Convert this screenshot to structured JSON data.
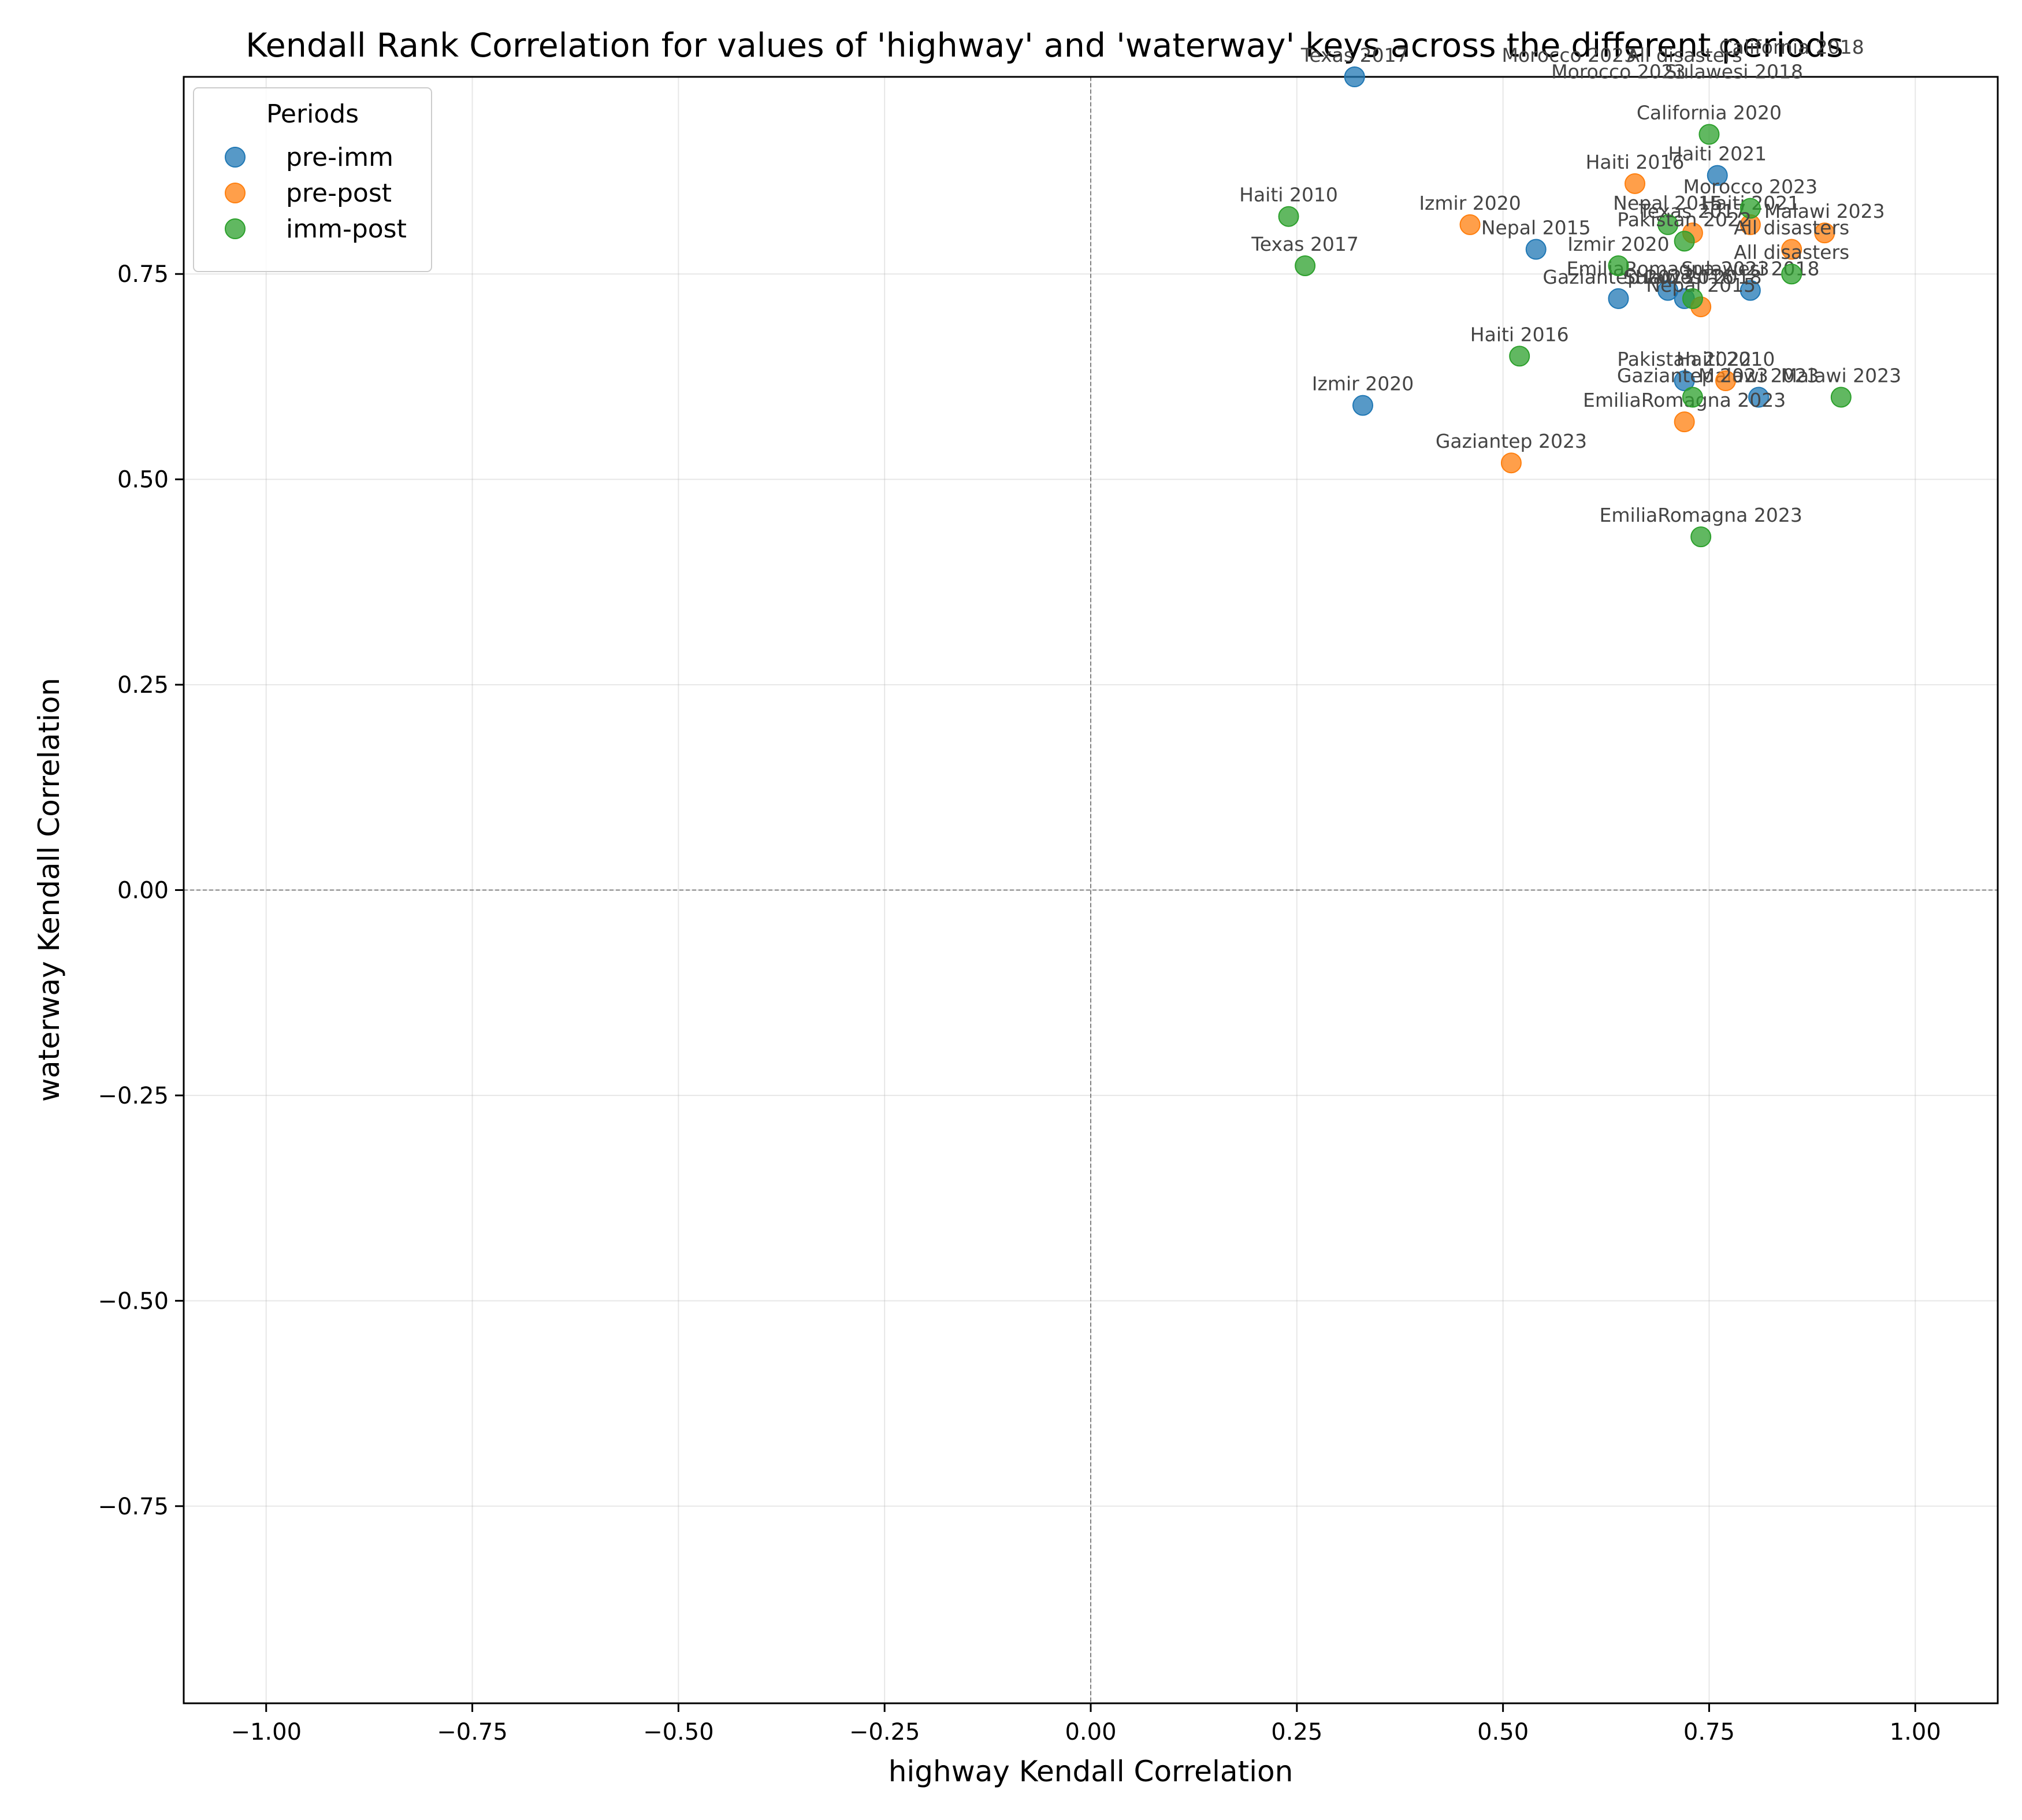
{
  "chart_data": {
    "type": "scatter",
    "title": "Kendall Rank Correlation for values of 'highway' and 'waterway' keys across the different periods",
    "xlabel": "highway Kendall Correlation",
    "ylabel": "waterway Kendall Correlation",
    "xlim": [
      -1.1,
      1.1
    ],
    "ylim": [
      -0.99,
      0.99
    ],
    "x_ticks": [
      "−1.00",
      "−0.75",
      "−0.50",
      "−0.25",
      "0.00",
      "0.25",
      "0.50",
      "0.75",
      "1.00"
    ],
    "x_tick_values": [
      -1.0,
      -0.75,
      -0.5,
      -0.25,
      0.0,
      0.25,
      0.5,
      0.75,
      1.0
    ],
    "y_ticks": [
      "−0.75",
      "−0.50",
      "−0.25",
      "0.00",
      "0.25",
      "0.50",
      "0.75"
    ],
    "y_tick_values": [
      -0.75,
      -0.5,
      -0.25,
      0.0,
      0.25,
      0.5,
      0.75
    ],
    "grid": true,
    "reference_lines": {
      "x": 0,
      "y": 0,
      "style": "dashed"
    },
    "legend": {
      "title": "Periods",
      "placement": "top-left"
    },
    "series": [
      {
        "name": "pre-imm",
        "color": "#1f77b4",
        "points": [
          {
            "label": "Texas 2017",
            "x": 0.32,
            "y": 0.99
          },
          {
            "label": "Haiti 2021",
            "x": 0.76,
            "y": 0.87
          },
          {
            "label": "Nepal 2015",
            "x": 0.54,
            "y": 0.78
          },
          {
            "label": "EmiliaRomagna 2023",
            "x": 0.7,
            "y": 0.73
          },
          {
            "label": "Sulawesi 2018",
            "x": 0.8,
            "y": 0.73
          },
          {
            "label": "Gaziantep 2023",
            "x": 0.64,
            "y": 0.72
          },
          {
            "label": "Haiti 2016",
            "x": 0.72,
            "y": 0.72
          },
          {
            "label": "Pakistan 2022",
            "x": 0.72,
            "y": 0.62
          },
          {
            "label": "Malawi 2023",
            "x": 0.81,
            "y": 0.6
          },
          {
            "label": "Izmir 2020",
            "x": 0.33,
            "y": 0.59
          }
        ]
      },
      {
        "name": "pre-post",
        "color": "#ff7f0e",
        "points": [
          {
            "label": "Haiti 2016",
            "x": 0.66,
            "y": 0.86
          },
          {
            "label": "Izmir 2020",
            "x": 0.46,
            "y": 0.81
          },
          {
            "label": "Texas 2017",
            "x": 0.73,
            "y": 0.8
          },
          {
            "label": "Haiti 2021",
            "x": 0.8,
            "y": 0.81
          },
          {
            "label": "Malawi 2023",
            "x": 0.89,
            "y": 0.8
          },
          {
            "label": "All disasters",
            "x": 0.85,
            "y": 0.78
          },
          {
            "label": "Nepal 2015",
            "x": 0.74,
            "y": 0.71
          },
          {
            "label": "Haiti 2010",
            "x": 0.77,
            "y": 0.62
          },
          {
            "label": "EmiliaRomagna 2023",
            "x": 0.72,
            "y": 0.57
          },
          {
            "label": "Gaziantep 2023",
            "x": 0.51,
            "y": 0.52
          }
        ]
      },
      {
        "name": "imm-post",
        "color": "#2ca02c",
        "points": [
          {
            "label": "California 2020",
            "x": 0.75,
            "y": 0.92
          },
          {
            "label": "Morocco 2023",
            "x": 0.8,
            "y": 0.83
          },
          {
            "label": "Haiti 2010",
            "x": 0.24,
            "y": 0.82
          },
          {
            "label": "Nepal 2015",
            "x": 0.7,
            "y": 0.81
          },
          {
            "label": "Pakistan 2022",
            "x": 0.72,
            "y": 0.79
          },
          {
            "label": "Texas 2017",
            "x": 0.26,
            "y": 0.76
          },
          {
            "label": "Izmir 2020",
            "x": 0.64,
            "y": 0.76
          },
          {
            "label": "All disasters",
            "x": 0.85,
            "y": 0.75
          },
          {
            "label": "Sulawesi 2018",
            "x": 0.73,
            "y": 0.72
          },
          {
            "label": "Haiti 2016",
            "x": 0.52,
            "y": 0.65
          },
          {
            "label": "Gaziantep 2023",
            "x": 0.73,
            "y": 0.6
          },
          {
            "label": "Malawi 2023",
            "x": 0.91,
            "y": 0.6
          },
          {
            "label": "EmiliaRomagna 2023",
            "x": 0.74,
            "y": 0.43
          }
        ]
      }
    ],
    "extra_labels": [
      {
        "text": "Morocco 2023",
        "x": 0.58,
        "y": 0.99
      },
      {
        "text": "Morocco 2023",
        "x": 0.64,
        "y": 0.97
      },
      {
        "text": "Sulawesi 2018",
        "x": 0.78,
        "y": 0.97
      },
      {
        "text": "All disasters",
        "x": 0.72,
        "y": 0.99
      },
      {
        "text": "California 2018",
        "x": 0.85,
        "y": 1.0
      }
    ]
  }
}
